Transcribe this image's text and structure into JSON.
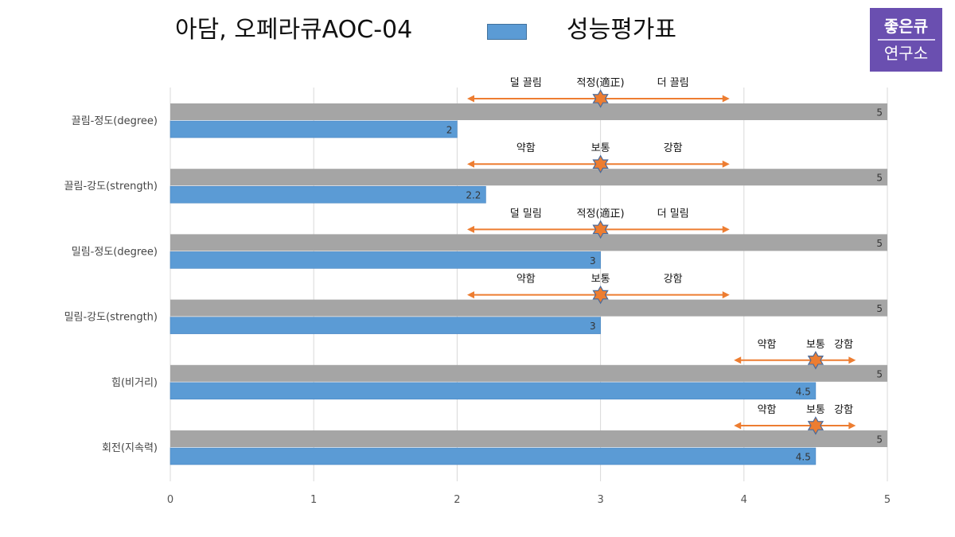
{
  "header": {
    "title": "아담, 오페라큐AOC-04",
    "legend_label": "성능평가표"
  },
  "logo": {
    "line1": "좋은큐",
    "line2": "연구소"
  },
  "colors": {
    "max_bar": "#a5a5a5",
    "value_bar": "#5b9bd5",
    "arrow": "#ed7d31",
    "star": "#ed7d31",
    "star_outline": "#4a6a9a",
    "logo_bg": "#6a4fb0"
  },
  "chart_data": {
    "type": "bar",
    "orientation": "horizontal",
    "categories": [
      "끌림-정도(degree)",
      "끌림-강도(strength)",
      "밀림-정도(degree)",
      "밀림-강도(strength)",
      "힘(비거리)",
      "회전(지속력)"
    ],
    "series": [
      {
        "values": [
          5,
          5,
          5,
          5,
          5,
          5
        ]
      },
      {
        "name": "성능평가표",
        "values": [
          2,
          2.2,
          3,
          3,
          4.5,
          4.5
        ]
      }
    ],
    "x_ticks": [
      "0",
      "1",
      "2",
      "3",
      "4",
      "5"
    ],
    "xlim": [
      0,
      5
    ],
    "grid": "vertical",
    "annotations": [
      {
        "labels": [
          "덜 끌림",
          "적정(適正)",
          "더 끌림"
        ],
        "marker": 3,
        "arrow_range": [
          2.07,
          3.9
        ]
      },
      {
        "labels": [
          "약함",
          "보통",
          "강함"
        ],
        "marker": 3,
        "arrow_range": [
          2.07,
          3.9
        ]
      },
      {
        "labels": [
          "덜 밀림",
          "적정(適正)",
          "더 밀림"
        ],
        "marker": 3,
        "arrow_range": [
          2.07,
          3.9
        ]
      },
      {
        "labels": [
          "약함",
          "보통",
          "강함"
        ],
        "marker": 3,
        "arrow_range": [
          2.07,
          3.9
        ]
      },
      {
        "labels": [
          "약함",
          "보통",
          "강함"
        ],
        "marker": 4.5,
        "arrow_range": [
          3.93,
          4.78
        ]
      },
      {
        "labels": [
          "약함",
          "보통",
          "강함"
        ],
        "marker": 4.5,
        "arrow_range": [
          3.93,
          4.78
        ]
      }
    ]
  }
}
